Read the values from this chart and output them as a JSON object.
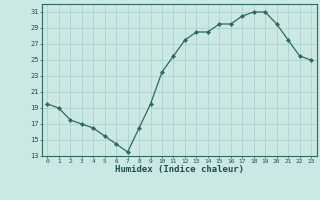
{
  "x": [
    0,
    1,
    2,
    3,
    4,
    5,
    6,
    7,
    8,
    9,
    10,
    11,
    12,
    13,
    14,
    15,
    16,
    17,
    18,
    19,
    20,
    21,
    22,
    23
  ],
  "y": [
    19.5,
    19.0,
    17.5,
    17.0,
    16.5,
    15.5,
    14.5,
    13.5,
    16.5,
    19.5,
    23.5,
    25.5,
    27.5,
    28.5,
    28.5,
    29.5,
    29.5,
    30.5,
    31.0,
    31.0,
    29.5,
    27.5,
    25.5,
    25.0
  ],
  "xlabel": "Humidex (Indice chaleur)",
  "ylim": [
    13,
    32
  ],
  "xlim": [
    -0.5,
    23.5
  ],
  "yticks": [
    13,
    15,
    17,
    19,
    21,
    23,
    25,
    27,
    29,
    31
  ],
  "xticks": [
    0,
    1,
    2,
    3,
    4,
    5,
    6,
    7,
    8,
    9,
    10,
    11,
    12,
    13,
    14,
    15,
    16,
    17,
    18,
    19,
    20,
    21,
    22,
    23
  ],
  "line_color": "#2d6b5e",
  "marker": "D",
  "marker_size": 2.0,
  "bg_color": "#cce8e4",
  "grid_color": "#aacfcb",
  "xlabel_color": "#1a5050",
  "tick_color": "#1a5050",
  "spine_color": "#2d6b5e"
}
